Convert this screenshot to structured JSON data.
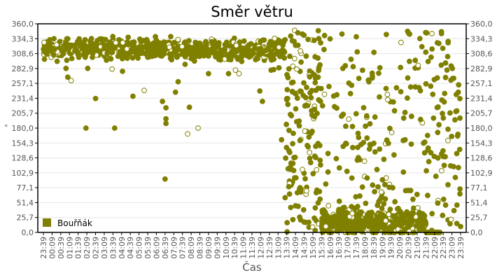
{
  "chart_data": {
    "type": "scatter",
    "title": "Směr větru",
    "xlabel": "Čas",
    "ylabel": "°",
    "ylim": [
      0,
      360
    ],
    "y_ticks": [
      "0,0",
      "25,7",
      "51,4",
      "77,1",
      "102,9",
      "128,6",
      "154,3",
      "180,0",
      "205,7",
      "231,4",
      "257,1",
      "282,9",
      "308,6",
      "334,3",
      "360,0"
    ],
    "x_ticks": [
      "23:39",
      "00:09",
      "00:39",
      "01:09",
      "01:39",
      "02:09",
      "02:39",
      "03:09",
      "03:39",
      "04:09",
      "04:39",
      "05:09",
      "05:39",
      "06:09",
      "06:39",
      "07:09",
      "07:39",
      "08:09",
      "08:39",
      "09:09",
      "09:39",
      "10:09",
      "10:39",
      "11:09",
      "11:39",
      "12:09",
      "12:39",
      "13:09",
      "13:39",
      "14:09",
      "14:39",
      "15:09",
      "15:39",
      "16:09",
      "16:39",
      "17:09",
      "17:39",
      "18:09",
      "18:39",
      "19:09",
      "19:39",
      "20:09",
      "20:39",
      "21:09",
      "21:39",
      "22:09",
      "22:39",
      "23:09",
      "23:39"
    ],
    "grid": true,
    "legend_position": "lower-left inside",
    "series": [
      {
        "name": "Bouřňák",
        "color": "#808000",
        "description": "Wind direction samples ~ every minute. 23:39–13:39 clustered 290–340°; 13:39–15:39 scattered widely with cluster near 0–60° and 150–200°; 15:39–21:39 mostly 0–60° with scattered points up to 350°; 21:39–23:39 many at 0°, scattered elsewhere.",
        "segments": [
          {
            "x_from": 0,
            "x_to": 27.8,
            "center": 316,
            "spread": 14,
            "count": 700
          },
          {
            "x_from": 27.8,
            "x_to": 32,
            "center": 120,
            "spread": 170,
            "count": 170
          },
          {
            "x_from": 32,
            "x_to": 44,
            "center": 18,
            "spread": 16,
            "count": 600
          },
          {
            "x_from": 32,
            "x_to": 44,
            "center": 150,
            "spread": 200,
            "count": 170
          },
          {
            "x_from": 44,
            "x_to": 45.6,
            "center": 0,
            "spread": 0,
            "count": 80
          },
          {
            "x_from": 44,
            "x_to": 48,
            "center": 170,
            "spread": 190,
            "count": 90
          }
        ],
        "outliers": [
          [
            2.6,
            283
          ],
          [
            2.8,
            268
          ],
          [
            3.2,
            262
          ],
          [
            4.9,
            180
          ],
          [
            6,
            231
          ],
          [
            5.1,
            283
          ],
          [
            7.9,
            282
          ],
          [
            8.2,
            180
          ],
          [
            9.1,
            278
          ],
          [
            10.3,
            235
          ],
          [
            11.6,
            245
          ],
          [
            13.7,
            226
          ],
          [
            14.1,
            215
          ],
          [
            14.1,
            196
          ],
          [
            14.1,
            188
          ],
          [
            14,
            92
          ],
          [
            15.2,
            242
          ],
          [
            15.5,
            260
          ],
          [
            16.8,
            216
          ],
          [
            16.6,
            170
          ],
          [
            17.8,
            180
          ],
          [
            16.3,
            290
          ],
          [
            19,
            274
          ],
          [
            21.3,
            274
          ],
          [
            22.1,
            280
          ],
          [
            22.5,
            274
          ],
          [
            24.9,
            244
          ],
          [
            25.2,
            226
          ],
          [
            27.4,
            160
          ],
          [
            26.5,
            281
          ],
          [
            26.2,
            280
          ],
          [
            27.1,
            284
          ]
        ]
      }
    ]
  }
}
